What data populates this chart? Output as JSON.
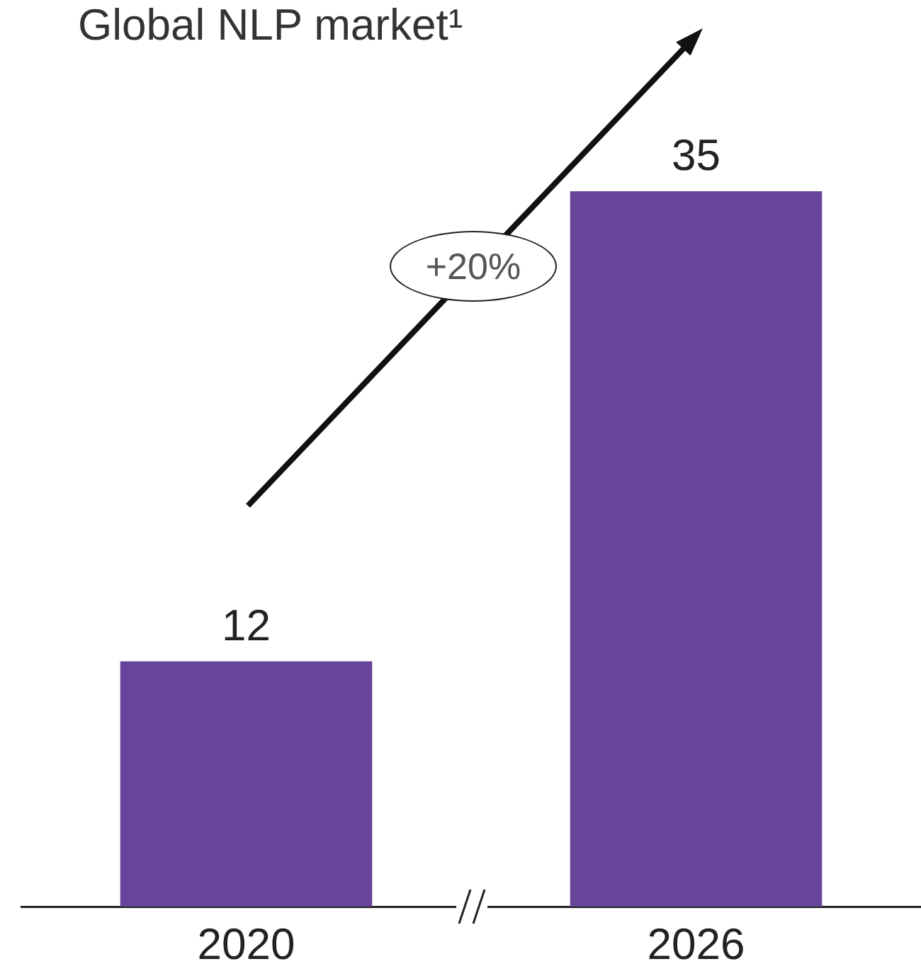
{
  "chart_data": {
    "type": "bar",
    "title": "Global NLP market¹",
    "categories": [
      "2020",
      "2026"
    ],
    "values": [
      12,
      35
    ],
    "color": "#67459a",
    "data_labels": true,
    "tick_labels": "x",
    "legend": false,
    "grid": false,
    "annotations": [
      "+20%"
    ]
  }
}
